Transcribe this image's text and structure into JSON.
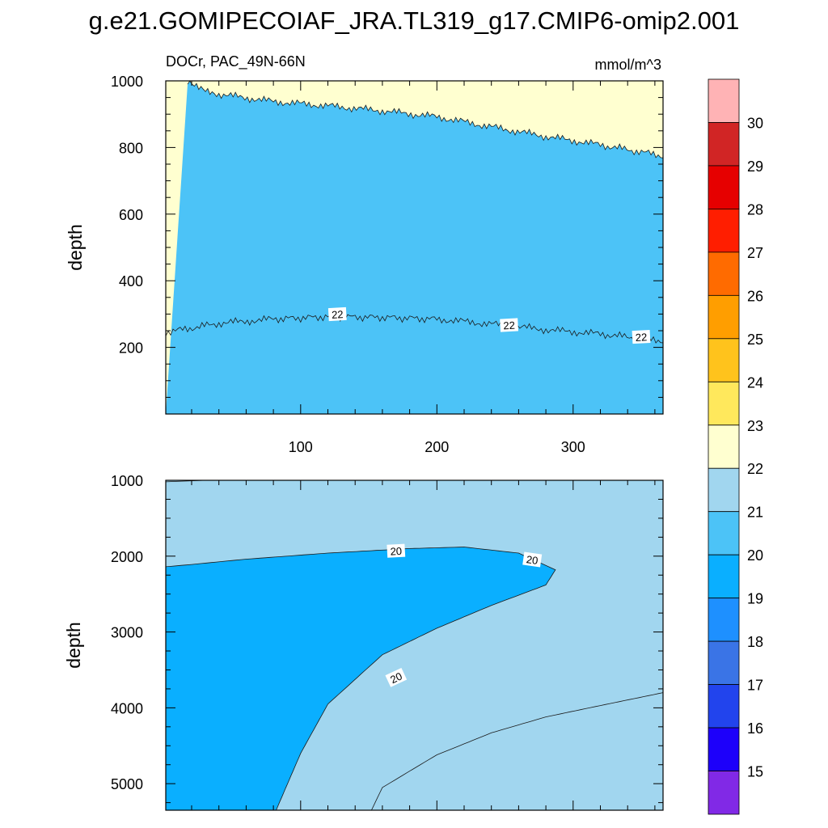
{
  "chart_data": {
    "type": "contour",
    "title": "g.e21.GOMIPECOIAF_JRA.TL319_g17.CMIP6-omip2.001",
    "variable": "DOCr, PAC_49N-66N",
    "units": "mmol/m^3",
    "xlim": [
      1,
      366
    ],
    "x_ticks": [
      100,
      200,
      300
    ],
    "colorbar": {
      "levels": [
        15,
        16,
        17,
        18,
        19,
        20,
        21,
        22,
        23,
        24,
        25,
        26,
        27,
        28,
        29,
        30
      ],
      "colors": [
        "#8129e6",
        "#1d00fa",
        "#2244ed",
        "#3a74e6",
        "#1e90ff",
        "#0aafff",
        "#4cc3f7",
        "#a1d6ef",
        "#ffffd0",
        "#ffe85c",
        "#ffc31c",
        "#ff9e00",
        "#ff6b00",
        "#ff1e00",
        "#e60000",
        "#d12525",
        "#ffb3b5"
      ]
    },
    "panels": [
      {
        "name": "upper",
        "ylabel": "depth",
        "ylim": [
          1000,
          0
        ],
        "y_ticks": [
          200,
          400,
          600,
          800,
          1000
        ],
        "boundaries": [
          {
            "level": 22,
            "points": [
              [
                1,
                245
              ],
              [
                40,
                272
              ],
              [
                80,
                285
              ],
              [
                120,
                292
              ],
              [
                160,
                290
              ],
              [
                200,
                285
              ],
              [
                240,
                270
              ],
              [
                280,
                253
              ],
              [
                320,
                240
              ],
              [
                366,
                220
              ]
            ],
            "labels": [
              [
                127,
                290
              ],
              [
                253,
                270
              ],
              [
                350,
                228
              ]
            ]
          },
          {
            "level": 21,
            "points": [
              [
                17,
                1000
              ],
              [
                40,
                960
              ],
              [
                80,
                938
              ],
              [
                120,
                925
              ],
              [
                160,
                910
              ],
              [
                200,
                892
              ],
              [
                240,
                862
              ],
              [
                280,
                833
              ],
              [
                320,
                808
              ],
              [
                366,
                775
              ]
            ],
            "labels": []
          }
        ],
        "contour_labels": [
          "22",
          "22",
          "22"
        ]
      },
      {
        "name": "lower",
        "ylabel": "depth",
        "ylim": [
          1000,
          5350
        ],
        "y_ticks": [
          1000,
          2000,
          3000,
          4000,
          5000
        ],
        "boundaries": [
          {
            "level": 20,
            "points": [
              [
                1,
                2140
              ],
              [
                20,
                2110
              ],
              [
                60,
                2040
              ],
              [
                120,
                1960
              ],
              [
                180,
                1900
              ],
              [
                220,
                1880
              ],
              [
                260,
                1960
              ],
              [
                287,
                2180
              ],
              [
                280,
                2380
              ],
              [
                240,
                2650
              ],
              [
                200,
                2950
              ],
              [
                160,
                3300
              ],
              [
                120,
                3950
              ],
              [
                100,
                4600
              ],
              [
                82,
                5350
              ]
            ],
            "labels": [
              [
                170,
                1930
              ],
              [
                270,
                2045
              ],
              [
                170,
                3600
              ]
            ]
          },
          {
            "level": 21,
            "points": [
              [
                152,
                5350
              ],
              [
                160,
                5050
              ],
              [
                200,
                4620
              ],
              [
                240,
                4330
              ],
              [
                280,
                4120
              ],
              [
                320,
                3970
              ],
              [
                366,
                3800
              ]
            ],
            "labels": []
          }
        ],
        "contour_labels": [
          "20",
          "20",
          "20"
        ]
      }
    ]
  }
}
